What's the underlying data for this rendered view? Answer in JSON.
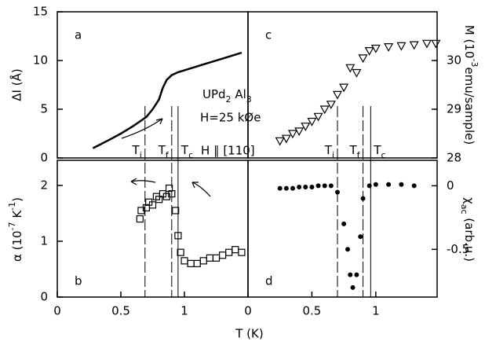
{
  "xlabel": "T (K)",
  "annotations": {
    "compound": [
      {
        "text": "UPd"
      },
      {
        "text": "2",
        "sub": true
      },
      {
        "text": " Al"
      },
      {
        "text": "3",
        "sub": true
      }
    ],
    "field": "H=25 kØe",
    "direction": "H ∥ [110]"
  },
  "chart_data": [
    {
      "type": "line",
      "panel": "a",
      "ylabel": "ΔI (Å)",
      "axis_side": "left",
      "xlim": [
        0,
        1.5
      ],
      "ylim": [
        0,
        15
      ],
      "yticks": [
        0,
        5,
        10,
        15
      ],
      "transitions": [
        {
          "label": [
            {
              "text": "T"
            },
            {
              "text": "i",
              "sub": true
            }
          ],
          "value": 0.69,
          "style": "dashed"
        },
        {
          "label": [
            {
              "text": "T"
            },
            {
              "text": "f",
              "sub": true
            }
          ],
          "value": 0.9,
          "style": "dashed"
        },
        {
          "label": [
            {
              "text": "T"
            },
            {
              "text": "c",
              "sub": true
            }
          ],
          "value": 0.95,
          "style": "solid"
        }
      ],
      "series": [
        {
          "name": "ΔI",
          "color": "#000000",
          "x": [
            0.28,
            0.4,
            0.5,
            0.6,
            0.7,
            0.75,
            0.8,
            0.83,
            0.86,
            0.9,
            0.95,
            1.0,
            1.1,
            1.2,
            1.3,
            1.45
          ],
          "values": [
            1.0,
            1.8,
            2.5,
            3.3,
            4.2,
            5.0,
            6.0,
            7.2,
            8.0,
            8.5,
            8.8,
            9.0,
            9.4,
            9.8,
            10.2,
            10.8
          ]
        }
      ]
    },
    {
      "type": "scatter",
      "panel": "b",
      "ylabel": [
        {
          "text": "α (10"
        },
        {
          "text": "-7",
          "sup": true
        },
        {
          "text": " K"
        },
        {
          "text": "-1",
          "sup": true
        },
        {
          "text": ")"
        }
      ],
      "axis_side": "left",
      "xlim": [
        0,
        1.5
      ],
      "xticks": [
        0,
        0.5,
        1
      ],
      "ylim": [
        0,
        2.45
      ],
      "yticks": [
        0,
        1,
        2
      ],
      "series": [
        {
          "name": "α",
          "color": "#000000",
          "marker": "square-open",
          "x": [
            0.65,
            0.66,
            0.7,
            0.72,
            0.75,
            0.78,
            0.8,
            0.83,
            0.86,
            0.88,
            0.9,
            0.93,
            0.95,
            0.97,
            1.0,
            1.05,
            1.1,
            1.15,
            1.2,
            1.25,
            1.3,
            1.35,
            1.4,
            1.45
          ],
          "values": [
            1.4,
            1.55,
            1.6,
            1.7,
            1.65,
            1.8,
            1.75,
            1.85,
            1.8,
            1.95,
            1.85,
            1.55,
            1.1,
            0.8,
            0.65,
            0.6,
            0.6,
            0.65,
            0.7,
            0.7,
            0.75,
            0.8,
            0.85,
            0.8
          ]
        }
      ]
    },
    {
      "type": "scatter",
      "panel": "c",
      "ylabel": [
        {
          "text": "M (10"
        },
        {
          "text": "-3",
          "sup": true
        },
        {
          "text": "emu/sample)"
        }
      ],
      "axis_side": "right",
      "xlim": [
        0,
        1.48
      ],
      "ylim": [
        28,
        31
      ],
      "yticks": [
        28,
        29,
        30
      ],
      "transitions": [
        {
          "label": [
            {
              "text": "T"
            },
            {
              "text": "i",
              "sub": true
            }
          ],
          "value": 0.7,
          "style": "dashed"
        },
        {
          "label": [
            {
              "text": "T"
            },
            {
              "text": "f",
              "sub": true
            }
          ],
          "value": 0.9,
          "style": "dashed"
        },
        {
          "label": [
            {
              "text": "T"
            },
            {
              "text": "c",
              "sub": true
            }
          ],
          "value": 0.96,
          "style": "solid"
        }
      ],
      "series": [
        {
          "name": "M",
          "color": "#000000",
          "marker": "triangle-open",
          "x": [
            0.25,
            0.3,
            0.35,
            0.4,
            0.45,
            0.5,
            0.55,
            0.6,
            0.65,
            0.7,
            0.75,
            0.8,
            0.85,
            0.9,
            0.95,
            1.0,
            1.1,
            1.2,
            1.3,
            1.4,
            1.47
          ],
          "values": [
            28.35,
            28.4,
            28.5,
            28.55,
            28.65,
            28.75,
            28.85,
            29.0,
            29.1,
            29.3,
            29.45,
            29.85,
            29.75,
            30.05,
            30.2,
            30.25,
            30.28,
            30.3,
            30.32,
            30.35,
            30.35
          ]
        }
      ]
    },
    {
      "type": "scatter",
      "panel": "d",
      "ylabel": [
        {
          "text": "χ"
        },
        {
          "text": "ac",
          "sub": true
        },
        {
          "text": " (arb.u.)"
        }
      ],
      "axis_side": "right",
      "xlim": [
        0,
        1.48
      ],
      "xticks": [
        0,
        0.5,
        1
      ],
      "ylim": [
        -0.875,
        0.2
      ],
      "yticks": [
        0,
        -0.5
      ],
      "series": [
        {
          "name": "χac",
          "color": "#000000",
          "marker": "circle",
          "x": [
            0.25,
            0.3,
            0.35,
            0.4,
            0.45,
            0.5,
            0.55,
            0.6,
            0.65,
            0.7,
            0.75,
            0.78,
            0.8,
            0.82,
            0.85,
            0.88,
            0.9,
            0.95,
            1.0,
            1.1,
            1.2,
            1.3
          ],
          "values": [
            -0.02,
            -0.02,
            -0.02,
            -0.01,
            -0.01,
            -0.01,
            0.0,
            0.0,
            0.0,
            -0.05,
            -0.3,
            -0.5,
            -0.7,
            -0.8,
            -0.7,
            -0.4,
            -0.1,
            0.0,
            0.01,
            0.01,
            0.01,
            0.0
          ]
        }
      ]
    }
  ]
}
